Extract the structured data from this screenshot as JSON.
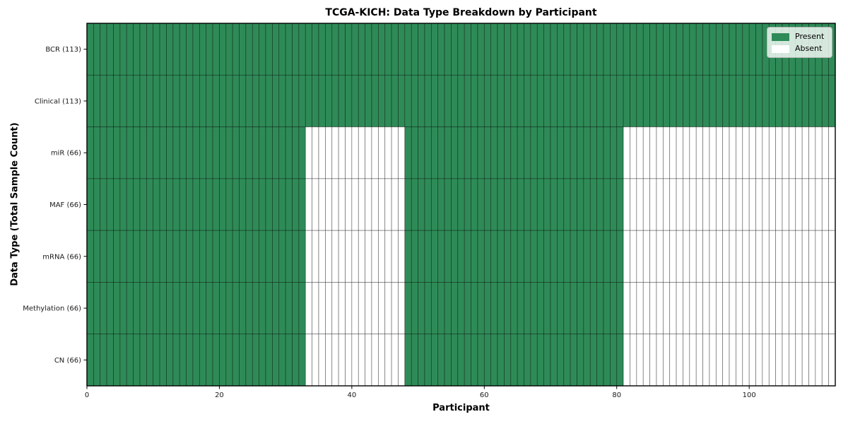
{
  "chart_data": {
    "type": "heatmap",
    "title": "TCGA-KICH: Data Type Breakdown by Participant",
    "xlabel": "Participant",
    "ylabel": "Data Type (Total Sample Count)",
    "n_participants": 113,
    "xlim": [
      0,
      113
    ],
    "x_ticks": [
      0,
      20,
      40,
      60,
      80,
      100
    ],
    "grid": "cell-edges",
    "legend_position": "upper-right",
    "rows": [
      {
        "label": "BCR (113)",
        "total_samples": 113,
        "present_ranges": [
          [
            0,
            113
          ]
        ]
      },
      {
        "label": "Clinical (113)",
        "total_samples": 113,
        "present_ranges": [
          [
            0,
            113
          ]
        ]
      },
      {
        "label": "miR (66)",
        "total_samples": 66,
        "present_ranges": [
          [
            0,
            33
          ],
          [
            48,
            81
          ]
        ]
      },
      {
        "label": "MAF (66)",
        "total_samples": 66,
        "present_ranges": [
          [
            0,
            33
          ],
          [
            48,
            81
          ]
        ]
      },
      {
        "label": "mRNA (66)",
        "total_samples": 66,
        "present_ranges": [
          [
            0,
            33
          ],
          [
            48,
            81
          ]
        ]
      },
      {
        "label": "Methylation (66)",
        "total_samples": 66,
        "present_ranges": [
          [
            0,
            33
          ],
          [
            48,
            81
          ]
        ]
      },
      {
        "label": "CN (66)",
        "total_samples": 66,
        "present_ranges": [
          [
            0,
            33
          ],
          [
            48,
            81
          ]
        ]
      }
    ],
    "legend": [
      {
        "label": "Present",
        "color": "#2e8b57"
      },
      {
        "label": "Absent",
        "color": "#ffffff"
      }
    ],
    "colors": {
      "present": "#2e8b57",
      "absent": "#ffffff",
      "cell_edge": "#000000",
      "spine": "#000000",
      "tick_label": "#1a1a1a"
    }
  }
}
